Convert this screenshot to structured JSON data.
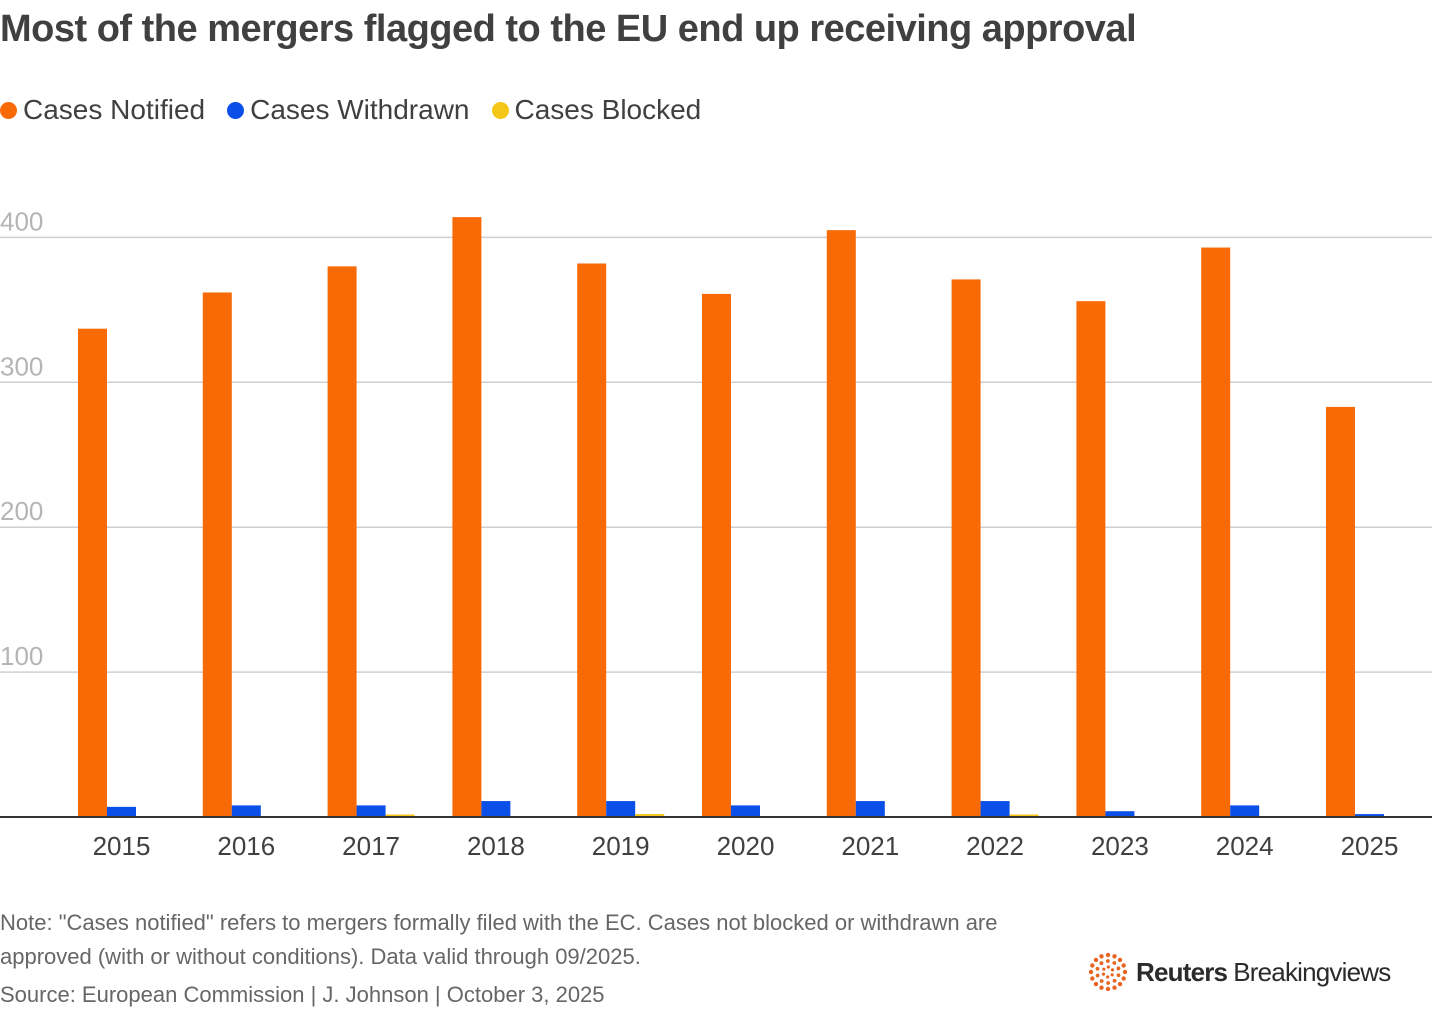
{
  "title": "Most of the mergers flagged to the EU end up receiving approval",
  "colors": {
    "notified": "#F76A06",
    "withdrawn": "#0A4FE8",
    "blocked": "#F5C518",
    "grid": "#CFCFCF",
    "axis": "#333333",
    "ytick": "#B5B5B5",
    "xtick": "#404040",
    "brand_accent": "#E8641F"
  },
  "chart_data": {
    "type": "bar",
    "categories": [
      "2015",
      "2016",
      "2017",
      "2018",
      "2019",
      "2020",
      "2021",
      "2022",
      "2023",
      "2024",
      "2025"
    ],
    "series": [
      {
        "name": "Cases Notified",
        "key": "notified",
        "values": [
          337,
          362,
          380,
          414,
          382,
          361,
          405,
          371,
          356,
          393,
          283
        ]
      },
      {
        "name": "Cases Withdrawn",
        "key": "withdrawn",
        "values": [
          7,
          8,
          8,
          11,
          11,
          8,
          11,
          11,
          4,
          8,
          2
        ]
      },
      {
        "name": "Cases Blocked",
        "key": "blocked",
        "values": [
          0,
          0,
          1,
          0,
          2,
          0,
          0,
          1,
          0,
          0,
          0
        ]
      }
    ],
    "yticks": [
      100,
      200,
      300,
      400
    ],
    "ylim": [
      0,
      420
    ],
    "xlabel": "",
    "ylabel": "",
    "grid": true,
    "legend_position": "top-left"
  },
  "note": "Note: \"Cases notified\" refers to mergers formally filed with the EC. Cases not blocked or withdrawn are approved (with or without conditions). Data valid through 09/2025.",
  "source": "Source: European Commission | J. Johnson | October 3, 2025",
  "brand": {
    "name": "Reuters",
    "sub": "Breakingviews"
  }
}
